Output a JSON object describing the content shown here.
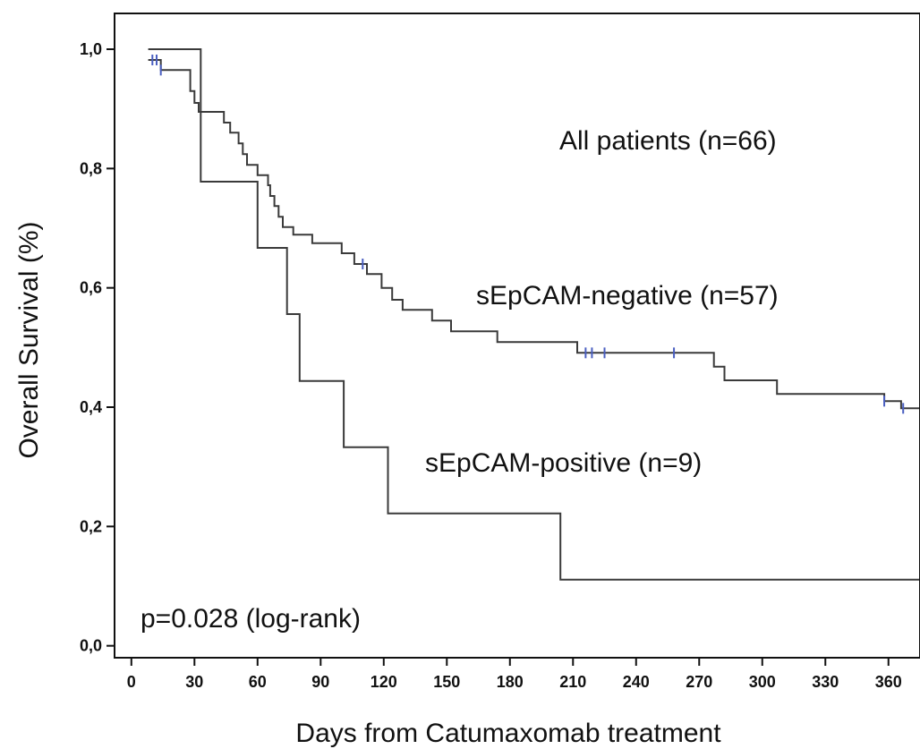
{
  "chart_data": {
    "type": "line",
    "subtype": "kaplan-meier",
    "title": "",
    "xlabel": "Days from Catumaxomab treatment",
    "ylabel": "Overall Survival (%)",
    "xlim": [
      -8,
      375
    ],
    "ylim": [
      -0.02,
      1.06
    ],
    "x_ticks": [
      0,
      30,
      60,
      90,
      120,
      150,
      180,
      210,
      240,
      270,
      300,
      330,
      360
    ],
    "y_ticks": [
      0.0,
      0.2,
      0.4,
      0.6,
      0.8,
      1.0
    ],
    "y_tick_labels": [
      "0,0",
      "0,2",
      "0,4",
      "0,6",
      "0,8",
      "1,0"
    ],
    "grid": false,
    "legend": "none",
    "annotations": [
      "All patients (n=66)",
      "sEpCAM-negative (n=57)",
      "sEpCAM-positive (n=9)",
      "p=0.028 (log-rank)"
    ],
    "series": [
      {
        "name": "sEpCAM-negative (n=57)",
        "x": [
          8,
          14,
          28,
          30,
          32,
          34,
          37,
          40,
          44,
          47,
          51,
          53,
          55,
          56,
          57,
          60,
          62,
          65,
          66,
          68,
          70,
          72,
          74,
          77,
          79,
          81,
          84,
          86,
          88,
          94,
          100,
          106,
          109,
          112,
          119,
          121,
          124,
          129,
          134,
          143,
          152,
          162,
          174,
          212,
          277,
          282,
          307,
          358,
          366,
          378
        ],
        "y": [
          0.982,
          0.965,
          0.93,
          0.91,
          0.895,
          0.895,
          0.895,
          0.895,
          0.877,
          0.86,
          0.842,
          0.824,
          0.806,
          0.806,
          0.806,
          0.789,
          0.789,
          0.772,
          0.754,
          0.737,
          0.719,
          0.702,
          0.702,
          0.689,
          0.689,
          0.689,
          0.689,
          0.675,
          0.675,
          0.675,
          0.658,
          0.64,
          0.64,
          0.623,
          0.6,
          0.6,
          0.58,
          0.563,
          0.563,
          0.545,
          0.527,
          0.527,
          0.509,
          0.491,
          0.468,
          0.445,
          0.422,
          0.41,
          0.398,
          0.398
        ],
        "censored_x": [
          10,
          12,
          14,
          110,
          216,
          219,
          225,
          258,
          358,
          367
        ]
      },
      {
        "name": "sEpCAM-positive (n=9)",
        "x": [
          8,
          31,
          33,
          55,
          60,
          71,
          74,
          78,
          80,
          100,
          101,
          120,
          122,
          202,
          204,
          378
        ],
        "y": [
          1.0,
          1.0,
          0.778,
          0.778,
          0.667,
          0.667,
          0.556,
          0.556,
          0.444,
          0.444,
          0.333,
          0.333,
          0.222,
          0.222,
          0.111,
          0.111
        ]
      }
    ],
    "colors": {
      "line": "#3a3a3a",
      "censor": "#4a5fc1",
      "axis": "#111111"
    }
  }
}
